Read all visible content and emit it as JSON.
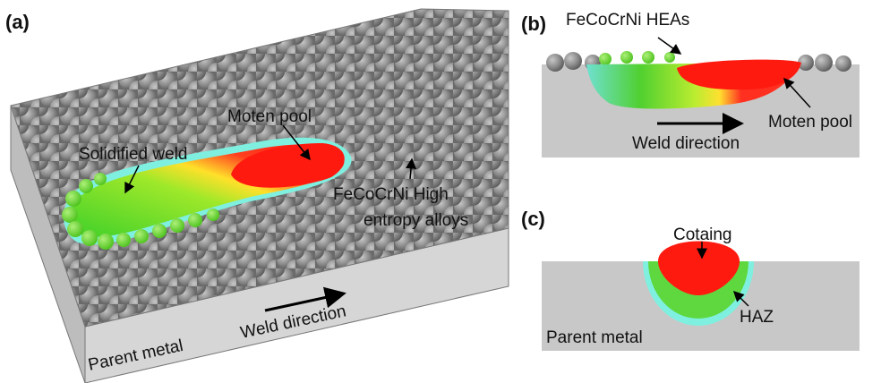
{
  "panels": [
    {
      "label": "(a)",
      "annotations": {
        "pool": "Moten pool",
        "weld": "Solidified weld",
        "alloy_line1": "FeCoCrNi High",
        "alloy_line2": "entropy alloys",
        "direction": "Weld direction",
        "base": "Parent metal"
      }
    },
    {
      "label": "(b)",
      "annotations": {
        "powder": "FeCoCrNi HEAs",
        "pool": "Moten pool",
        "direction": "Weld direction"
      }
    },
    {
      "label": "(c)",
      "annotations": {
        "coating": "Cotaing",
        "haz": "HAZ",
        "base": "Parent metal"
      }
    }
  ]
}
